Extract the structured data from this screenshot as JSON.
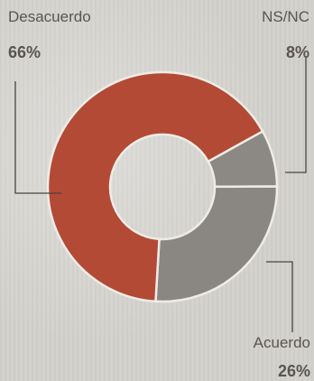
{
  "chart_data": {
    "type": "pie",
    "variant": "donut",
    "slices": [
      {
        "label": "Desacuerdo",
        "value": 66,
        "display": "66%",
        "color": "#b34a36"
      },
      {
        "label": "NS/NC",
        "value": 8,
        "display": "8%",
        "color": "#8c8884"
      },
      {
        "label": "Acuerdo",
        "value": 26,
        "display": "26%",
        "color": "#8a8682"
      }
    ]
  },
  "colors": {
    "text": "#5a5550",
    "leader": "#4a4540",
    "separator": "#efece6"
  }
}
